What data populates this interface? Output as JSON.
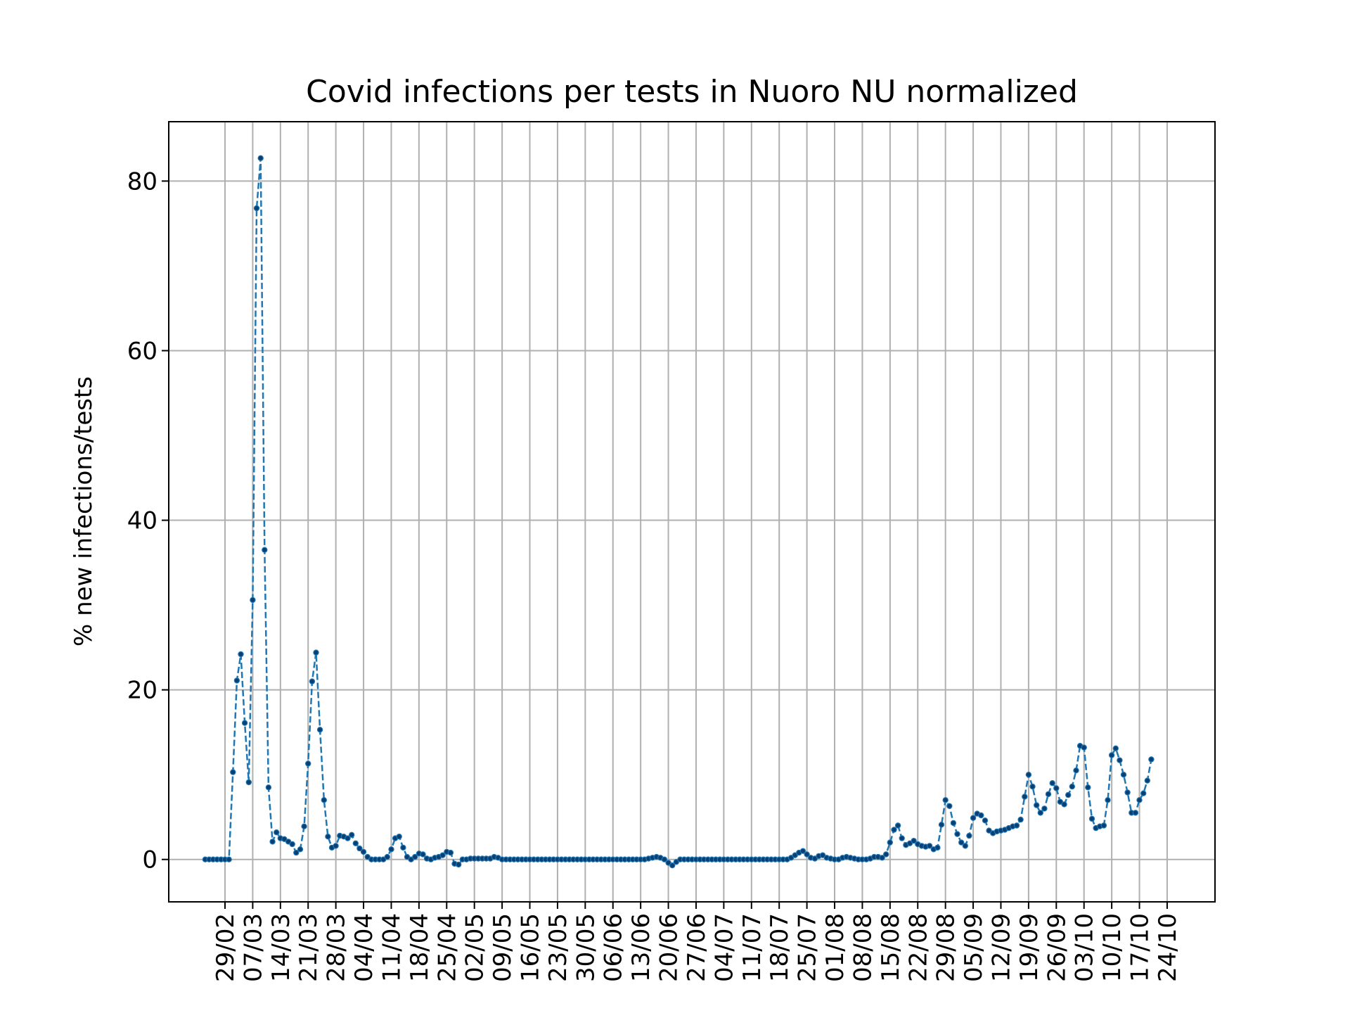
{
  "chart_data": {
    "type": "line",
    "title": "Covid infections per tests in Nuoro NU normalized",
    "xlabel": "",
    "ylabel": "% new infections/tests",
    "ylim": [
      -5,
      87
    ],
    "yticks": [
      0,
      20,
      40,
      60,
      80
    ],
    "xticks": [
      "29/02",
      "07/03",
      "14/03",
      "21/03",
      "28/03",
      "04/04",
      "11/04",
      "18/04",
      "25/04",
      "02/05",
      "09/05",
      "16/05",
      "23/05",
      "30/05",
      "06/06",
      "13/06",
      "20/06",
      "27/06",
      "04/07",
      "11/07",
      "18/07",
      "25/07",
      "01/08",
      "08/08",
      "15/08",
      "22/08",
      "29/08",
      "05/09",
      "12/09",
      "19/09",
      "26/09",
      "03/10",
      "10/10",
      "17/10",
      "24/10"
    ],
    "grid": true,
    "legend": "none",
    "line_style": "dashed with dot markers",
    "colors": {
      "line": "#1f77b4",
      "grid": "#b0b0b0"
    },
    "series": [
      {
        "start_date": "24/02",
        "values": [
          0,
          0,
          0,
          0,
          0,
          0,
          0,
          10.3,
          21.1,
          24.2,
          16.1,
          9.1,
          30.6,
          76.8,
          82.7,
          36.5,
          8.5,
          2.1,
          3.2,
          2.5,
          2.4,
          2.1,
          1.8,
          0.8,
          1.2,
          3.9,
          11.3,
          21,
          24.4,
          15.3,
          7,
          2.7,
          1.4,
          1.6,
          2.8,
          2.7,
          2.5,
          2.9,
          1.9,
          1.3,
          0.9,
          0.3,
          0,
          0,
          0,
          0,
          0.3,
          1.2,
          2.5,
          2.7,
          1.4,
          0.3,
          0,
          0.3,
          0.7,
          0.6,
          0.1,
          0,
          0.2,
          0.3,
          0.5,
          0.9,
          0.8,
          -0.5,
          -0.6,
          0,
          0,
          0.1,
          0.1,
          0.1,
          0.1,
          0.1,
          0.1,
          0.3,
          0.2,
          0,
          0,
          0,
          0,
          0,
          0,
          0,
          0,
          0,
          0,
          0,
          0,
          0,
          0,
          0,
          0,
          0,
          0,
          0,
          0,
          0,
          0,
          0,
          0,
          0,
          0,
          0,
          0,
          0,
          0,
          0,
          0,
          0,
          0,
          0,
          0,
          0,
          0.1,
          0.2,
          0.3,
          0.2,
          0,
          -0.4,
          -0.7,
          -0.3,
          0,
          0,
          0,
          0,
          0,
          0,
          0,
          0,
          0,
          0,
          0,
          0,
          0,
          0,
          0,
          0,
          0,
          0,
          0,
          0,
          0,
          0,
          0,
          0,
          0,
          0,
          0,
          0,
          0.2,
          0.5,
          0.8,
          1.0,
          0.6,
          0.2,
          0.1,
          0.4,
          0.5,
          0.2,
          0.1,
          0,
          0,
          0.2,
          0.3,
          0.2,
          0.1,
          0,
          0,
          0,
          0.1,
          0.3,
          0.3,
          0.2,
          0.6,
          2.0,
          3.5,
          4.0,
          2.5,
          1.7,
          1.9,
          2.2,
          1.8,
          1.6,
          1.5,
          1.6,
          1.2,
          1.4,
          4.1,
          7.0,
          6.3,
          4.3,
          3.0,
          2.0,
          1.6,
          2.8,
          4.9,
          5.4,
          5.2,
          4.6,
          3.4,
          3.1,
          3.3,
          3.4,
          3.5,
          3.7,
          3.9,
          4.0,
          4.7,
          7.4,
          10.0,
          8.6,
          6.4,
          5.5,
          6.0,
          7.7,
          9.0,
          8.4,
          6.8,
          6.5,
          7.6,
          8.6,
          10.5,
          13.4,
          13.2,
          8.5,
          4.8,
          3.7,
          3.9,
          4.0,
          7.0,
          12.3,
          13.1,
          11.7,
          10.0,
          7.9,
          5.5,
          5.5,
          7.0,
          7.8,
          9.3,
          11.8
        ]
      }
    ]
  }
}
